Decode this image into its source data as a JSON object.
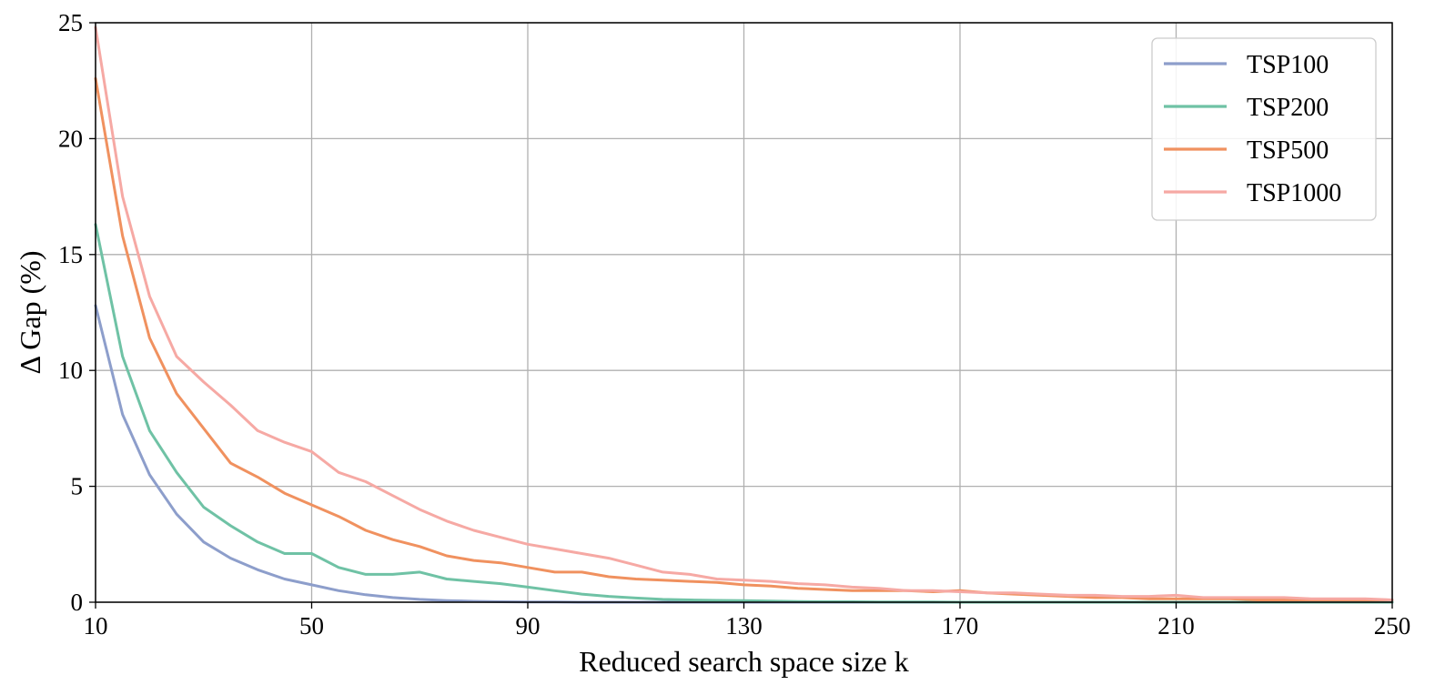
{
  "chart_data": {
    "type": "line",
    "title": "",
    "xlabel": "Reduced search space size k",
    "ylabel": "Δ Gap (%)",
    "xlim": [
      10,
      250
    ],
    "ylim": [
      0,
      25
    ],
    "xticks": [
      10,
      50,
      90,
      130,
      170,
      210,
      250
    ],
    "yticks": [
      0,
      5,
      10,
      15,
      20,
      25
    ],
    "grid": true,
    "legend_position": "top-right",
    "x": [
      10,
      15,
      20,
      25,
      30,
      35,
      40,
      45,
      50,
      55,
      60,
      65,
      70,
      75,
      80,
      85,
      90,
      95,
      100,
      105,
      110,
      115,
      120,
      125,
      130,
      135,
      140,
      145,
      150,
      155,
      160,
      165,
      170,
      175,
      180,
      185,
      190,
      195,
      200,
      205,
      210,
      215,
      220,
      225,
      230,
      235,
      240,
      245,
      250
    ],
    "series": [
      {
        "name": "TSP100",
        "color": "#8d9ecb",
        "values": [
          12.8,
          8.1,
          5.5,
          3.8,
          2.6,
          1.9,
          1.4,
          1.0,
          0.75,
          0.5,
          0.32,
          0.2,
          0.12,
          0.07,
          0.04,
          0.02,
          0.01,
          0.01,
          0.0,
          0.0,
          0.0,
          0.0,
          0.0,
          0.0,
          0.0,
          0.0,
          0.0,
          0.0,
          0.0,
          0.0,
          0.0,
          0.0,
          0.0,
          0.0,
          0.0,
          0.0,
          0.0,
          0.0,
          0.0,
          0.0,
          0.0,
          0.0,
          0.0,
          0.0,
          0.0,
          0.0,
          0.0,
          0.0,
          0.0
        ]
      },
      {
        "name": "TSP200",
        "color": "#6fc2a5",
        "values": [
          16.3,
          10.6,
          7.4,
          5.6,
          4.1,
          3.3,
          2.6,
          2.1,
          2.1,
          1.5,
          1.2,
          1.2,
          1.3,
          1.0,
          0.9,
          0.8,
          0.65,
          0.5,
          0.35,
          0.25,
          0.18,
          0.12,
          0.1,
          0.08,
          0.07,
          0.05,
          0.03,
          0.02,
          0.02,
          0.01,
          0.01,
          0.01,
          0.0,
          0.0,
          0.0,
          0.0,
          0.0,
          0.0,
          0.0,
          0.0,
          0.0,
          0.0,
          0.0,
          0.0,
          0.0,
          0.0,
          0.0,
          0.0,
          0.0
        ]
      },
      {
        "name": "TSP500",
        "color": "#f0915f",
        "values": [
          22.6,
          15.8,
          11.4,
          9.0,
          7.5,
          6.0,
          5.4,
          4.7,
          4.2,
          3.7,
          3.1,
          2.7,
          2.4,
          2.0,
          1.8,
          1.7,
          1.5,
          1.3,
          1.3,
          1.1,
          1.0,
          0.95,
          0.9,
          0.85,
          0.75,
          0.7,
          0.6,
          0.55,
          0.5,
          0.5,
          0.5,
          0.45,
          0.5,
          0.4,
          0.35,
          0.3,
          0.25,
          0.2,
          0.2,
          0.15,
          0.15,
          0.15,
          0.15,
          0.1,
          0.1,
          0.1,
          0.1,
          0.1,
          0.1
        ]
      },
      {
        "name": "TSP1000",
        "color": "#f6a9a4",
        "values": [
          24.8,
          17.5,
          13.2,
          10.6,
          9.5,
          8.5,
          7.4,
          6.9,
          6.5,
          5.6,
          5.2,
          4.6,
          4.0,
          3.5,
          3.1,
          2.8,
          2.5,
          2.3,
          2.1,
          1.9,
          1.6,
          1.3,
          1.2,
          1.0,
          0.95,
          0.9,
          0.8,
          0.75,
          0.65,
          0.6,
          0.5,
          0.5,
          0.45,
          0.4,
          0.4,
          0.35,
          0.3,
          0.3,
          0.25,
          0.25,
          0.3,
          0.2,
          0.2,
          0.2,
          0.2,
          0.15,
          0.15,
          0.15,
          0.1
        ]
      }
    ]
  }
}
